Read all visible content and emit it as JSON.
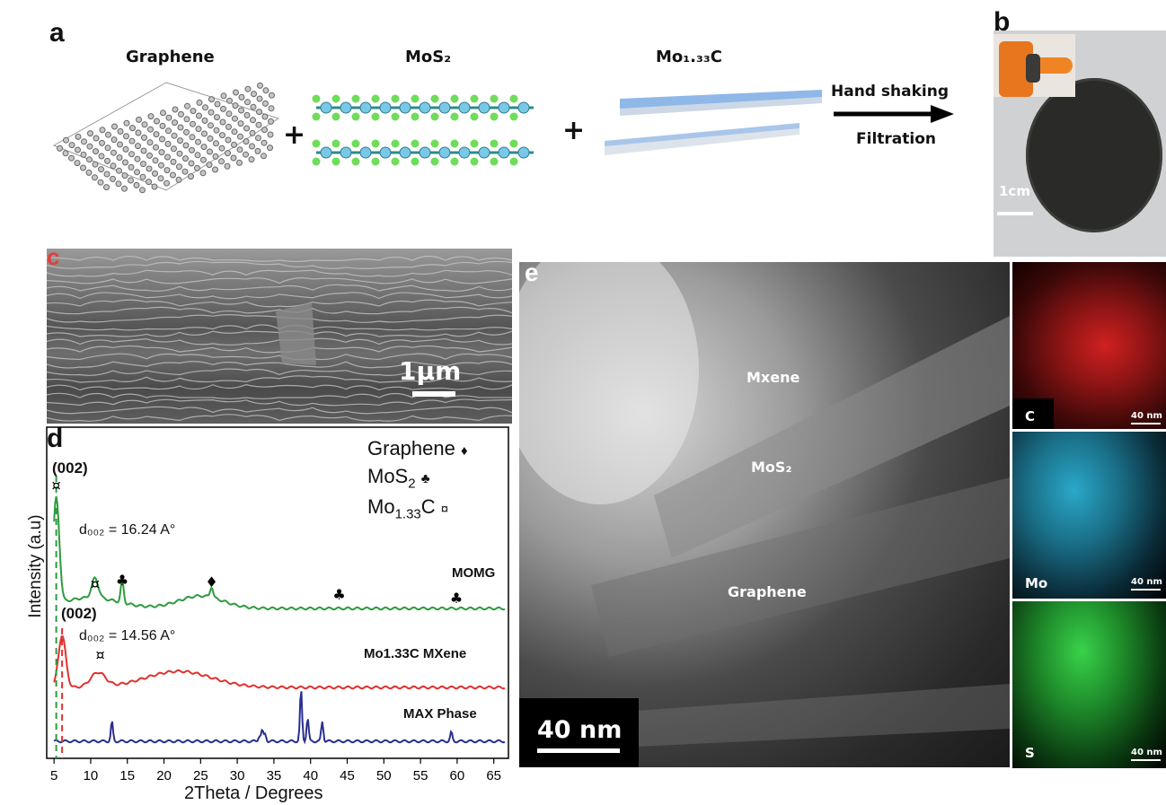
{
  "panel_a": {
    "label": "a",
    "graphene_title": "Graphene",
    "mos2_title": "MoS₂",
    "mxene_title": "Mo₁.₃₃C",
    "plus": "+",
    "arrow_top": "Hand shaking",
    "arrow_bottom": "Filtration"
  },
  "panel_b": {
    "label": "b",
    "scale": "1cm"
  },
  "panel_c": {
    "label": "c",
    "scale": "1µm"
  },
  "panel_e": {
    "label": "e",
    "mxene": "Mxene",
    "mos2": "MoS₂",
    "graphene": "Graphene",
    "scale": "40 nm",
    "maps": [
      {
        "element": "C",
        "scale": "40 nm",
        "color": "#e02020"
      },
      {
        "element": "Mo",
        "scale": "40 nm",
        "color": "#1fb4d0"
      },
      {
        "element": "S",
        "scale": "40 nm",
        "color": "#2ec83a"
      }
    ]
  },
  "chart_data": {
    "type": "line",
    "label": "d",
    "xlabel": "2Theta / Degrees",
    "ylabel": "Intensity (a.u)",
    "xlim": [
      4,
      67
    ],
    "x_ticks": [
      "5",
      "10",
      "15",
      "20",
      "25",
      "30",
      "35",
      "40",
      "45",
      "50",
      "55",
      "60",
      "65"
    ],
    "legend": [
      {
        "text": "Graphene",
        "symbol": "♦"
      },
      {
        "text": "MoS2",
        "symbol": "♣"
      },
      {
        "text": "Mo1.33C",
        "symbol": "¤"
      }
    ],
    "series": [
      {
        "name": "MOMG",
        "color": "#2e9b3e"
      },
      {
        "name": "Mo1.33C MXene",
        "color": "#e0322e"
      },
      {
        "name": "MAX Phase",
        "color": "#2a2f8f"
      }
    ],
    "annotations": {
      "peak1": "(002)",
      "peak2": "(002)",
      "d1": "d₀₀₂ = 16.24 A°",
      "d2": "d₀₀₂ = 14.56 A°",
      "sym_clover": "♣",
      "sym_diamond": "♦",
      "sym_currency": "¤"
    },
    "peaks": {
      "MOMG": [
        {
          "x": 5.3,
          "symbol": "¤"
        },
        {
          "x": 10.6,
          "symbol": "¤"
        },
        {
          "x": 14.3,
          "symbol": "♣"
        },
        {
          "x": 26.5,
          "symbol": "♦"
        },
        {
          "x": 43.9,
          "symbol": "♣"
        },
        {
          "x": 59.9,
          "symbol": "♣"
        }
      ],
      "Mo1.33C MXene": [
        {
          "x": 6.1,
          "symbol": "¤"
        },
        {
          "x": 11.3,
          "symbol": "¤"
        }
      ],
      "MAX Phase": [
        {
          "x": 12.9
        },
        {
          "x": 33.4
        },
        {
          "x": 38.7
        },
        {
          "x": 39.6
        },
        {
          "x": 41.6
        },
        {
          "x": 59.2
        }
      ]
    }
  }
}
